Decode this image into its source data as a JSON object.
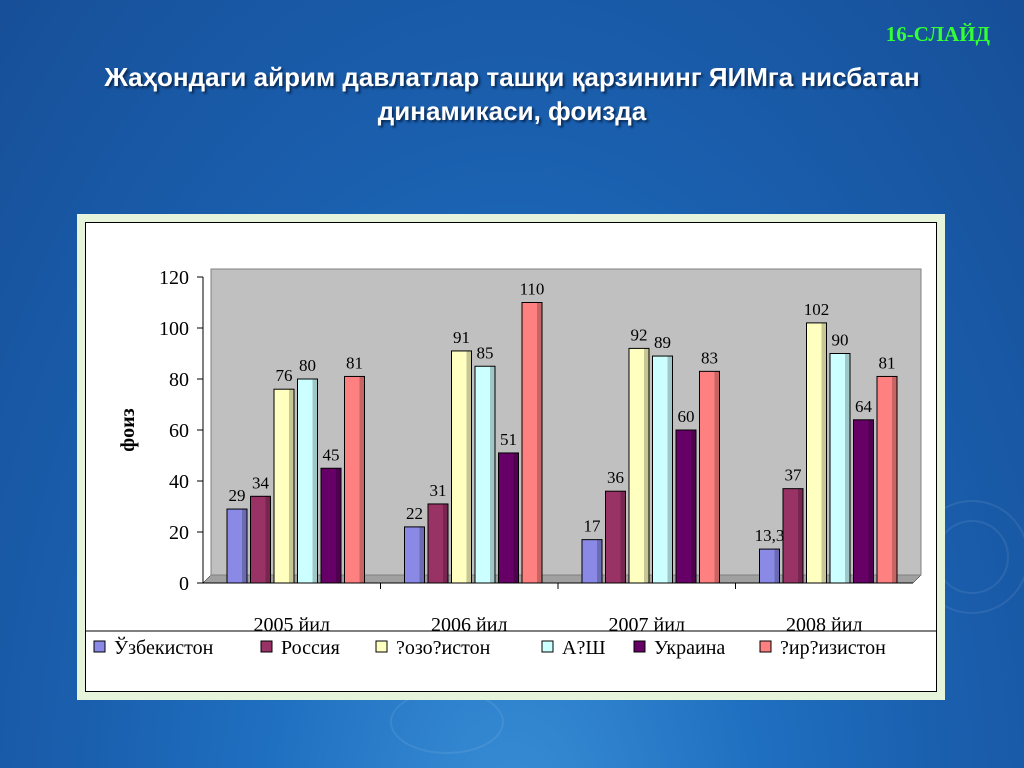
{
  "slide_number": "16-СЛАЙД",
  "title": "Жаҳондаги айрим давлатлар ташқи қарзининг ЯИМга нисбатан динамикаси, фоизда",
  "chart_data": {
    "type": "bar",
    "title": "Жаҳондаги айрим давлатлар ташқи қарзининг ЯИМга нисбатан динамикаси, фоизда",
    "xlabel": "",
    "ylabel": "фоиз",
    "ylim": [
      0,
      120
    ],
    "yticks": [
      "0",
      "20",
      "40",
      "60",
      "80",
      "100",
      "120"
    ],
    "categories": [
      "2005 йил",
      "2006 йил",
      "2007 йил",
      "2008 йил"
    ],
    "legend_position": "bottom",
    "grid": false,
    "series": [
      {
        "name": "Ўзбекистон",
        "color": "#8a8ae6",
        "values": [
          29,
          22,
          17,
          13.3
        ],
        "labels": [
          "29",
          "22",
          "17",
          "13,3"
        ]
      },
      {
        "name": "Россия",
        "color": "#993366",
        "values": [
          34,
          31,
          36,
          37
        ],
        "labels": [
          "34",
          "31",
          "36",
          "37"
        ]
      },
      {
        "name": "?озо?истон",
        "color": "#ffffc0",
        "values": [
          76,
          91,
          92,
          102
        ],
        "labels": [
          "76",
          "91",
          "92",
          "102"
        ]
      },
      {
        "name": "А?Ш",
        "color": "#ccffff",
        "values": [
          80,
          85,
          89,
          90
        ],
        "labels": [
          "80",
          "85",
          "89",
          "90"
        ]
      },
      {
        "name": "Украина",
        "color": "#660066",
        "values": [
          45,
          51,
          60,
          64
        ],
        "labels": [
          "45",
          "51",
          "60",
          "64"
        ]
      },
      {
        "name": "?ир?изистон",
        "color": "#ff8080",
        "values": [
          81,
          110,
          83,
          81
        ],
        "labels": [
          "81",
          "110",
          "83",
          "81"
        ]
      }
    ]
  }
}
